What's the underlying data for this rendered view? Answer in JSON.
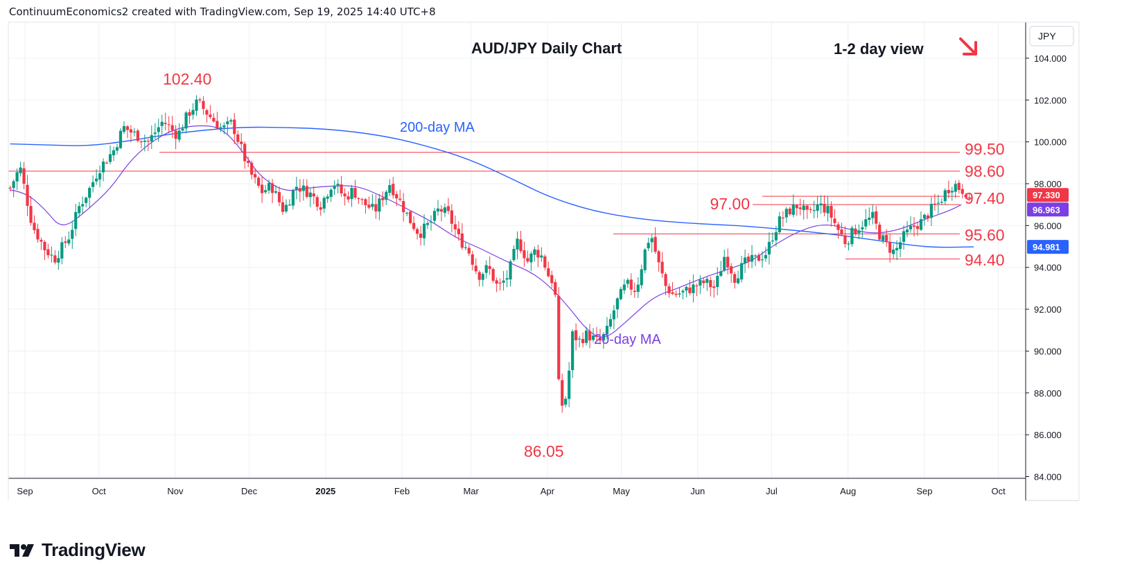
{
  "header": {
    "attribution": "ContinuumEconomics2 created with TradingView.com, Sep 19, 2025 14:40 UTC+8"
  },
  "footer": {
    "brand": "TradingView"
  },
  "colors": {
    "up": "#089981",
    "down": "#f23645",
    "ma200": "#2962ff",
    "ma20": "#7b3fe4",
    "level": "#f23645",
    "grid": "#eef0f3",
    "axis_text": "#131722"
  },
  "chart_data": {
    "type": "candlestick",
    "title": "AUD/JPY Daily Chart",
    "currency": "JPY",
    "view_label": "1-2 day view",
    "view_direction": "down",
    "ylim": [
      84,
      106
    ],
    "y_ticks": [
      "104.000",
      "102.000",
      "100.000",
      "98.000",
      "96.000",
      "94.000",
      "92.000",
      "90.000",
      "88.000",
      "86.000",
      "84.000"
    ],
    "x_months": [
      "Sep",
      "Oct",
      "Nov",
      "Dec",
      "2025",
      "Feb",
      "Mar",
      "Apr",
      "May",
      "Jun",
      "Jul",
      "Aug",
      "Sep",
      "Oct"
    ],
    "x_month_days": [
      0,
      30,
      61,
      91,
      122,
      153,
      181,
      212,
      242,
      273,
      303,
      334,
      365,
      395
    ],
    "last_price": {
      "label": "97.330",
      "value": 97.33
    },
    "ma20_badge": {
      "label": "96.963",
      "value": 96.963
    },
    "ma200_badge": {
      "label": "94.981",
      "value": 94.981
    },
    "ma200": {
      "name": "200-day MA",
      "points": [
        [
          -6,
          99.9
        ],
        [
          10,
          99.85
        ],
        [
          25,
          99.8
        ],
        [
          40,
          100.0
        ],
        [
          60,
          100.4
        ],
        [
          85,
          100.7
        ],
        [
          105,
          100.7
        ],
        [
          125,
          100.6
        ],
        [
          145,
          100.3
        ],
        [
          160,
          99.9
        ],
        [
          180,
          99.2
        ],
        [
          200,
          98.1
        ],
        [
          212,
          97.4
        ],
        [
          230,
          96.7
        ],
        [
          250,
          96.3
        ],
        [
          270,
          96.1
        ],
        [
          290,
          96.0
        ],
        [
          310,
          95.8
        ],
        [
          330,
          95.55
        ],
        [
          345,
          95.3
        ],
        [
          360,
          95.05
        ],
        [
          370,
          94.95
        ],
        [
          385,
          94.98
        ]
      ]
    },
    "ma20": {
      "name": "20-day MA",
      "points": [
        [
          -6,
          97.7
        ],
        [
          0,
          97.6
        ],
        [
          8,
          96.8
        ],
        [
          15,
          95.8
        ],
        [
          25,
          96.7
        ],
        [
          35,
          97.8
        ],
        [
          42,
          99.0
        ],
        [
          50,
          99.9
        ],
        [
          60,
          100.6
        ],
        [
          70,
          100.8
        ],
        [
          80,
          100.7
        ],
        [
          90,
          99.3
        ],
        [
          95,
          98.4
        ],
        [
          105,
          97.6
        ],
        [
          115,
          97.8
        ],
        [
          125,
          97.9
        ],
        [
          135,
          97.9
        ],
        [
          145,
          97.4
        ],
        [
          155,
          96.8
        ],
        [
          165,
          96.2
        ],
        [
          175,
          95.4
        ],
        [
          185,
          94.9
        ],
        [
          195,
          94.3
        ],
        [
          205,
          93.8
        ],
        [
          212,
          93.2
        ],
        [
          220,
          92.2
        ],
        [
          228,
          91.0
        ],
        [
          235,
          90.5
        ],
        [
          245,
          91.5
        ],
        [
          255,
          92.6
        ],
        [
          265,
          93.0
        ],
        [
          275,
          93.5
        ],
        [
          285,
          93.9
        ],
        [
          295,
          94.3
        ],
        [
          303,
          95.0
        ],
        [
          315,
          95.8
        ],
        [
          325,
          96.1
        ],
        [
          335,
          95.8
        ],
        [
          345,
          95.6
        ],
        [
          355,
          95.8
        ],
        [
          365,
          96.3
        ],
        [
          375,
          96.7
        ],
        [
          380,
          97.0
        ]
      ]
    },
    "ohlc_path": [
      [
        -6,
        97.8
      ],
      [
        -2,
        98.8
      ],
      [
        3,
        96.0
      ],
      [
        8,
        94.9
      ],
      [
        12,
        94.4
      ],
      [
        18,
        95.5
      ],
      [
        22,
        96.9
      ],
      [
        26,
        97.7
      ],
      [
        30,
        98.7
      ],
      [
        36,
        99.6
      ],
      [
        40,
        100.7
      ],
      [
        44,
        100.4
      ],
      [
        50,
        100.0
      ],
      [
        56,
        101.0
      ],
      [
        62,
        100.3
      ],
      [
        66,
        101.3
      ],
      [
        70,
        101.9
      ],
      [
        76,
        101.1
      ],
      [
        80,
        100.6
      ],
      [
        84,
        100.9
      ],
      [
        88,
        99.6
      ],
      [
        91,
        98.6
      ],
      [
        96,
        97.6
      ],
      [
        100,
        97.9
      ],
      [
        105,
        96.7
      ],
      [
        110,
        97.9
      ],
      [
        115,
        97.6
      ],
      [
        120,
        97.0
      ],
      [
        125,
        98.1
      ],
      [
        130,
        97.3
      ],
      [
        133,
        97.7
      ],
      [
        137,
        97.1
      ],
      [
        142,
        96.7
      ],
      [
        148,
        98.0
      ],
      [
        152,
        97.2
      ],
      [
        156,
        96.3
      ],
      [
        160,
        95.6
      ],
      [
        165,
        96.2
      ],
      [
        168,
        96.8
      ],
      [
        172,
        96.5
      ],
      [
        176,
        95.4
      ],
      [
        180,
        94.8
      ],
      [
        184,
        93.6
      ],
      [
        188,
        94.0
      ],
      [
        192,
        93.0
      ],
      [
        196,
        93.6
      ],
      [
        200,
        95.3
      ],
      [
        204,
        94.3
      ],
      [
        207,
        94.8
      ],
      [
        210,
        94.5
      ],
      [
        212,
        93.7
      ],
      [
        215,
        93.2
      ],
      [
        217,
        87.2
      ],
      [
        220,
        87.9
      ],
      [
        222,
        90.8
      ],
      [
        225,
        90.5
      ],
      [
        228,
        90.8
      ],
      [
        233,
        90.4
      ],
      [
        236,
        90.9
      ],
      [
        240,
        92.3
      ],
      [
        244,
        93.2
      ],
      [
        248,
        92.9
      ],
      [
        252,
        95.0
      ],
      [
        254,
        95.6
      ],
      [
        257,
        94.2
      ],
      [
        260,
        93.1
      ],
      [
        263,
        92.7
      ],
      [
        267,
        92.8
      ],
      [
        272,
        93.1
      ],
      [
        276,
        93.3
      ],
      [
        280,
        93.0
      ],
      [
        284,
        94.6
      ],
      [
        288,
        93.5
      ],
      [
        292,
        94.2
      ],
      [
        297,
        94.4
      ],
      [
        301,
        94.7
      ],
      [
        303,
        95.4
      ],
      [
        306,
        96.2
      ],
      [
        310,
        96.7
      ],
      [
        314,
        97.0
      ],
      [
        318,
        96.4
      ],
      [
        322,
        97.0
      ],
      [
        326,
        96.7
      ],
      [
        330,
        95.8
      ],
      [
        333,
        95.2
      ],
      [
        336,
        95.7
      ],
      [
        340,
        96.1
      ],
      [
        344,
        96.4
      ],
      [
        347,
        95.5
      ],
      [
        351,
        94.9
      ],
      [
        353,
        94.7
      ],
      [
        356,
        95.4
      ],
      [
        360,
        95.9
      ],
      [
        364,
        96.2
      ],
      [
        368,
        96.8
      ],
      [
        371,
        97.1
      ],
      [
        374,
        97.7
      ],
      [
        377,
        98.0
      ],
      [
        379,
        97.8
      ],
      [
        382,
        97.6
      ],
      [
        384,
        97.33
      ]
    ],
    "levels": [
      {
        "label": "102.40",
        "value": 102.4,
        "kind": "peak"
      },
      {
        "label": "99.50",
        "value": 99.5
      },
      {
        "label": "98.60",
        "value": 98.6
      },
      {
        "label": "97.40",
        "value": 97.4
      },
      {
        "label": "97.00",
        "value": 97.0
      },
      {
        "label": "95.60",
        "value": 95.6
      },
      {
        "label": "94.40",
        "value": 94.4
      },
      {
        "label": "86.05",
        "value": 86.05,
        "kind": "trough"
      }
    ]
  }
}
